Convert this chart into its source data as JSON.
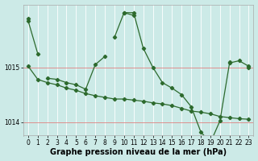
{
  "bg_color": "#cceae7",
  "line_color": "#2d6a2d",
  "marker_color": "#2d6a2d",
  "xlabel": "Graphe pression niveau de la mer (hPa)",
  "xlabel_fontsize": 7,
  "tick_fontsize": 5.5,
  "ylim": [
    1013.75,
    1016.15
  ],
  "yticks": [
    1014,
    1015
  ],
  "xlim": [
    -0.5,
    23.5
  ],
  "xticks": [
    0,
    1,
    2,
    3,
    4,
    5,
    6,
    7,
    8,
    9,
    10,
    11,
    12,
    13,
    14,
    15,
    16,
    17,
    18,
    19,
    20,
    21,
    22,
    23
  ],
  "vgrid_color": "#ffffff",
  "hgrid_color": "#e08080",
  "series1": [
    1015.85,
    1015.25,
    null,
    null,
    null,
    null,
    null,
    null,
    null,
    1015.55,
    1016.0,
    1015.95,
    null,
    null,
    null,
    null,
    null,
    null,
    null,
    null,
    null,
    1015.1,
    null,
    1015.0
  ],
  "series2": [
    1015.9,
    null,
    1014.8,
    1014.78,
    1014.72,
    1014.68,
    1014.6,
    1015.05,
    1015.2,
    null,
    1016.0,
    1016.0,
    1015.35,
    1015.0,
    1014.72,
    1014.62,
    1014.5,
    1014.28,
    1013.82,
    1013.62,
    1014.02,
    1015.08,
    1015.12,
    1015.02
  ],
  "series3": [
    1015.02,
    1014.78,
    1014.72,
    1014.68,
    1014.62,
    1014.58,
    1014.52,
    1014.48,
    1014.45,
    1014.42,
    1014.42,
    1014.4,
    1014.38,
    1014.35,
    1014.33,
    1014.3,
    1014.25,
    1014.2,
    1014.18,
    1014.15,
    1014.1,
    1014.08,
    1014.06,
    1014.05
  ]
}
